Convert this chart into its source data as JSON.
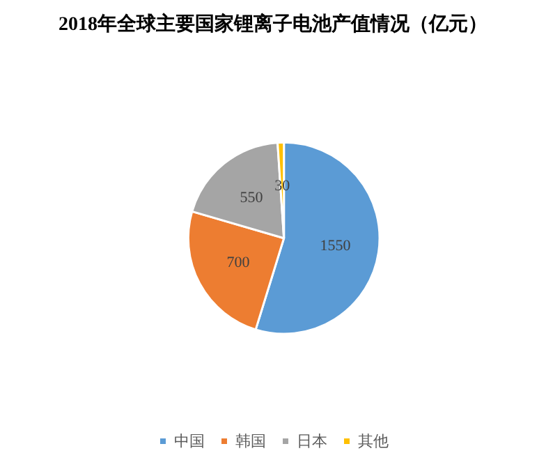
{
  "chart_data": {
    "type": "pie",
    "title": "2018年全球主要国家锂离子电池产值情况（亿元）",
    "categories": [
      "中国",
      "韩国",
      "日本",
      "其他"
    ],
    "values": [
      1550,
      700,
      550,
      30
    ],
    "colors": [
      "#5b9bd5",
      "#ed7d31",
      "#a5a5a5",
      "#ffc000"
    ],
    "data_labels": true,
    "legend": "bottom"
  }
}
